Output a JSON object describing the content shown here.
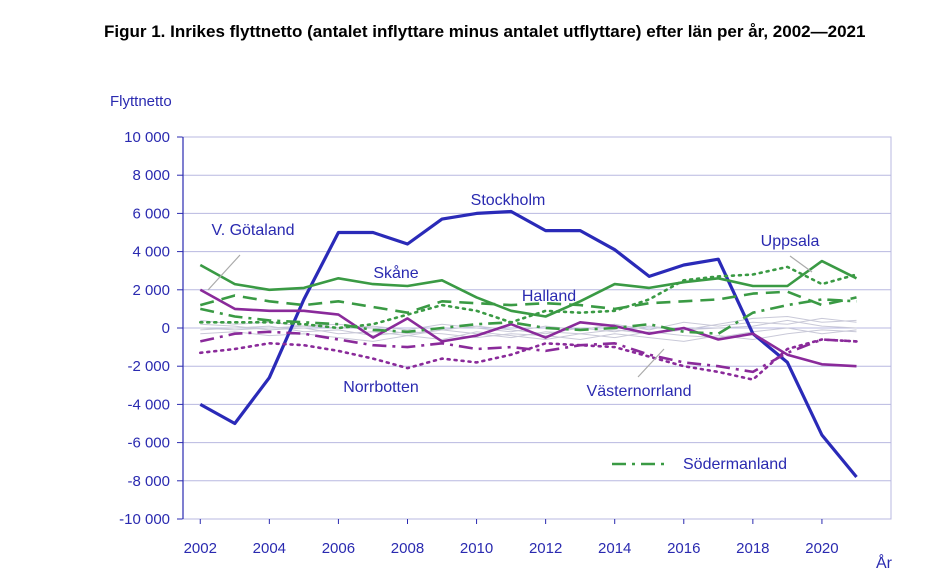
{
  "chart_data": {
    "type": "line",
    "title": "Figur 1. Inrikes flyttnetto (antalet inflyttare minus antalet utflyttare) efter län per år, 2002—2021",
    "ylabel": "Flyttnetto",
    "xlabel": "År",
    "x": [
      2002,
      2003,
      2004,
      2005,
      2006,
      2007,
      2008,
      2009,
      2010,
      2011,
      2012,
      2013,
      2014,
      2015,
      2016,
      2017,
      2018,
      2019,
      2020,
      2021
    ],
    "xlim": [
      2001.5,
      2022.0
    ],
    "ylim": [
      -10000,
      10000
    ],
    "xticks": [
      "2002",
      "2004",
      "2006",
      "2008",
      "2010",
      "2012",
      "2014",
      "2016",
      "2018",
      "2020"
    ],
    "yticks": [
      "10 000",
      "8 000",
      "6 000",
      "4 000",
      "2 000",
      "0",
      "-2 000",
      "-4 000",
      "-6 000",
      "-8 000",
      "-10 000"
    ],
    "grid": "horizontal",
    "series": [
      {
        "name": "Stockholm",
        "color": "#2a2ab8",
        "style": "solid",
        "width": 3.2,
        "values": [
          -4000,
          -5000,
          -2600,
          1500,
          5000,
          5000,
          4400,
          5700,
          6000,
          6100,
          5100,
          5100,
          4100,
          2700,
          3300,
          3600,
          -300,
          -1800,
          -5600,
          -7800
        ]
      },
      {
        "name": "Skåne",
        "color": "#3a9a44",
        "style": "solid",
        "width": 2.6,
        "values": [
          3300,
          2300,
          2000,
          2100,
          2600,
          2300,
          2200,
          2500,
          1600,
          900,
          600,
          1400,
          2300,
          2100,
          2400,
          2600,
          2200,
          2200,
          3500,
          2600
        ]
      },
      {
        "name": "V. Götaland",
        "color": "#8a2a9a",
        "style": "solid",
        "width": 2.6,
        "values": [
          2000,
          1000,
          900,
          900,
          700,
          -500,
          500,
          -700,
          -400,
          200,
          -500,
          300,
          100,
          -300,
          0,
          -600,
          -300,
          -1400,
          -1900,
          -2000
        ]
      },
      {
        "name": "Halland",
        "color": "#3a9a44",
        "style": "dash",
        "width": 2.6,
        "values": [
          1200,
          1700,
          1400,
          1200,
          1400,
          1100,
          800,
          1400,
          1300,
          1200,
          1300,
          1200,
          1000,
          1300,
          1400,
          1500,
          1800,
          1900,
          1200,
          1600
        ]
      },
      {
        "name": "Uppsala",
        "color": "#3a9a44",
        "style": "dot",
        "width": 2.6,
        "values": [
          300,
          300,
          300,
          200,
          0,
          200,
          700,
          1200,
          900,
          300,
          900,
          800,
          900,
          1500,
          2500,
          2700,
          2800,
          3200,
          2300,
          2800
        ]
      },
      {
        "name": "Södermanland",
        "color": "#3a9a44",
        "style": "dashdot",
        "width": 2.6,
        "values": [
          1000,
          600,
          400,
          300,
          200,
          -100,
          -200,
          0,
          200,
          300,
          0,
          -100,
          0,
          200,
          -200,
          -300,
          800,
          1200,
          1500,
          1400
        ]
      },
      {
        "name": "Västernorrland",
        "color": "#8a2a9a",
        "style": "dashdot",
        "width": 2.6,
        "values": [
          -700,
          -300,
          -200,
          -300,
          -600,
          -900,
          -1000,
          -800,
          -1100,
          -1000,
          -1200,
          -900,
          -800,
          -1400,
          -1800,
          -2000,
          -2300,
          -1300,
          -600,
          -700
        ]
      },
      {
        "name": "Norrbotten",
        "color": "#8a2a9a",
        "style": "dot",
        "width": 2.6,
        "values": [
          -1300,
          -1100,
          -800,
          -900,
          -1200,
          -1600,
          -2100,
          -1600,
          -1800,
          -1400,
          -800,
          -900,
          -1000,
          -1500,
          -2000,
          -2300,
          -2700,
          -1100,
          -600,
          -700
        ]
      },
      {
        "name": "",
        "color": "#c9c9d8",
        "style": "solid",
        "width": 1,
        "values": [
          200,
          100,
          -100,
          0,
          -300,
          -200,
          -400,
          -100,
          -300,
          -500,
          -200,
          -300,
          -100,
          -300,
          -100,
          200,
          500,
          600,
          300,
          400
        ]
      },
      {
        "name": "",
        "color": "#c9c9d8",
        "style": "solid",
        "width": 1,
        "values": [
          -300,
          -200,
          -400,
          -300,
          -500,
          -700,
          -400,
          -600,
          -200,
          -400,
          -600,
          -300,
          -500,
          -200,
          -400,
          -500,
          -200,
          0,
          -300,
          -100
        ]
      },
      {
        "name": "",
        "color": "#c9c9d8",
        "style": "solid",
        "width": 1,
        "values": [
          400,
          200,
          300,
          100,
          0,
          100,
          -100,
          200,
          0,
          -200,
          100,
          -100,
          200,
          -100,
          300,
          100,
          300,
          200,
          500,
          300
        ]
      },
      {
        "name": "",
        "color": "#c9c9d8",
        "style": "solid",
        "width": 1,
        "values": [
          -100,
          0,
          100,
          -200,
          -100,
          -400,
          -200,
          -300,
          -500,
          -300,
          -400,
          -600,
          -300,
          -500,
          -700,
          -400,
          -600,
          -300,
          -100,
          -200
        ]
      },
      {
        "name": "",
        "color": "#c9c9d8",
        "style": "solid",
        "width": 1,
        "values": [
          0,
          -100,
          0,
          100,
          200,
          0,
          -300,
          -100,
          100,
          -100,
          -300,
          0,
          -200,
          100,
          -100,
          0,
          100,
          400,
          100,
          0
        ]
      }
    ],
    "legend": {
      "position": "bottom-right",
      "entries": [
        {
          "label": "Södermanland",
          "series": 5
        }
      ]
    },
    "annotations": [
      {
        "text": "Stockholm"
      },
      {
        "text": "Skåne"
      },
      {
        "text": "V. Götaland"
      },
      {
        "text": "Halland"
      },
      {
        "text": "Uppsala"
      },
      {
        "text": "Norrbotten"
      },
      {
        "text": "Västernorrland"
      }
    ]
  }
}
